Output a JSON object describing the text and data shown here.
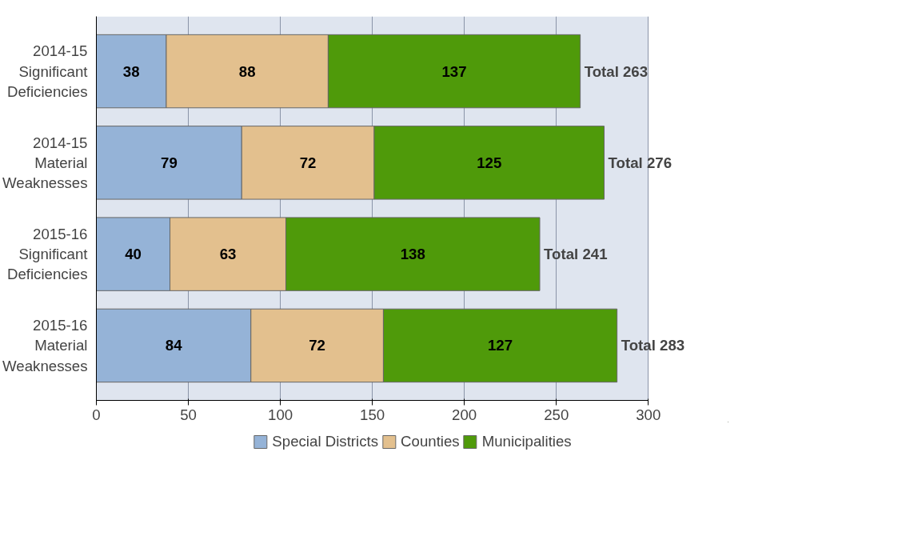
{
  "chart_data": {
    "type": "bar",
    "orientation": "horizontal",
    "stacked": true,
    "categories": [
      "2014-15 Significant Deficiencies",
      "2014-15 Material Weaknesses",
      "2015-16 Significant Deficiencies",
      "2015-16 Material Weaknesses"
    ],
    "series": [
      {
        "name": "Special Districts",
        "color": "#95b3d7",
        "values": [
          38,
          79,
          40,
          84
        ]
      },
      {
        "name": "Counties",
        "color": "#e3c08e",
        "values": [
          88,
          72,
          63,
          72
        ]
      },
      {
        "name": "Municipalities",
        "color": "#4f9a0a",
        "values": [
          137,
          125,
          138,
          127
        ]
      }
    ],
    "totals": [
      "Total 263",
      "Total 276",
      "Total 241",
      "Total 283"
    ],
    "data_labels": true,
    "xlim": [
      0,
      300
    ],
    "xticks": [
      0,
      50,
      100,
      150,
      200,
      250,
      300
    ],
    "grid": "x",
    "legend": "bottom"
  }
}
